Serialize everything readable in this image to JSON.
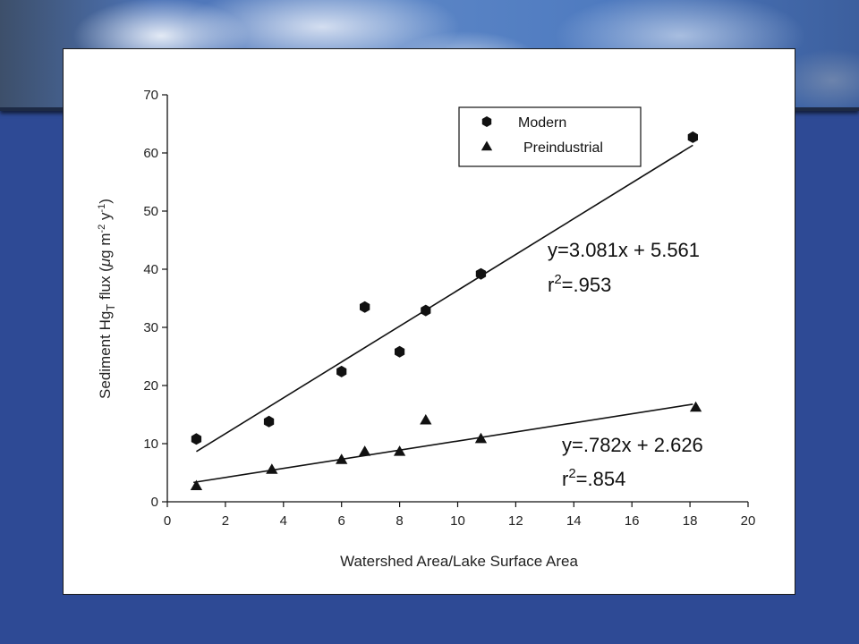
{
  "chart_data": {
    "type": "scatter",
    "xlabel": "Watershed Area/Lake Surface Area",
    "ylabel": {
      "prefix": "Sediment Hg",
      "sub": "T",
      "units_text": " flux (",
      "mu": "μ",
      "g": "g m",
      "exp1": "-2",
      "y": " y",
      "exp2": "-1",
      "close": ")"
    },
    "xlim": [
      0,
      20
    ],
    "ylim": [
      0,
      70
    ],
    "x_ticks": [
      0,
      2,
      4,
      6,
      8,
      10,
      12,
      14,
      16,
      18,
      20
    ],
    "y_ticks": [
      0,
      10,
      20,
      30,
      40,
      50,
      60,
      70
    ],
    "grid": false,
    "legend_position": "top-right",
    "series": [
      {
        "name": "Modern",
        "marker": "hexagon",
        "x": [
          1.0,
          3.5,
          6.0,
          6.8,
          8.0,
          8.9,
          10.8,
          18.1
        ],
        "y": [
          10.8,
          13.8,
          22.4,
          33.5,
          25.8,
          32.9,
          39.2,
          62.7
        ],
        "fit": {
          "slope": 3.081,
          "intercept": 5.561,
          "x_range": [
            1.0,
            18.1
          ],
          "equation": "y=3.081x + 5.561",
          "r_label": "r",
          "r_exp": "2",
          "r_value": "=.953"
        }
      },
      {
        "name": "Preindustrial",
        "marker": "triangle",
        "x": [
          1.0,
          3.6,
          6.0,
          6.8,
          8.0,
          8.9,
          10.8,
          18.2
        ],
        "y": [
          2.7,
          5.5,
          7.2,
          8.6,
          8.6,
          14.0,
          10.8,
          16.2
        ],
        "fit": {
          "slope": 0.782,
          "intercept": 2.626,
          "x_range": [
            0.9,
            18.1
          ],
          "equation": "y=.782x + 2.626",
          "r_label": "r",
          "r_exp": "2",
          "r_value": "=.854"
        }
      }
    ]
  },
  "colors": {
    "background": "#2e4a95",
    "panel": "#ffffff",
    "ink": "#111111"
  }
}
